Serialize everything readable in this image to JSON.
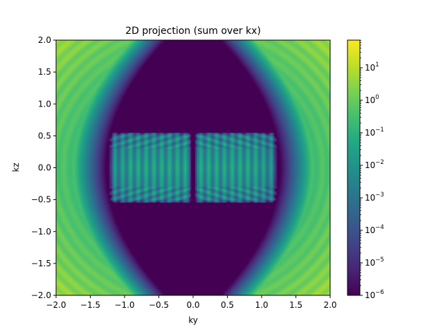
{
  "chart_data": {
    "type": "heatmap",
    "title": "2D projection (sum over kx)",
    "xlabel": "ky",
    "ylabel": "kz",
    "xlim": [
      -2.0,
      2.0
    ],
    "ylim": [
      -2.0,
      2.0
    ],
    "x_ticks": [
      "−2.0",
      "−1.5",
      "−1.0",
      "−0.5",
      "0.0",
      "0.5",
      "1.0",
      "1.5",
      "2.0"
    ],
    "x_tick_values": [
      -2.0,
      -1.5,
      -1.0,
      -0.5,
      0.0,
      0.5,
      1.0,
      1.5,
      2.0
    ],
    "y_ticks": [
      "2.0",
      "1.5",
      "1.0",
      "0.5",
      "0.0",
      "−0.5",
      "−1.0",
      "−1.5",
      "−2.0"
    ],
    "y_tick_values": [
      2.0,
      1.5,
      1.0,
      0.5,
      0.0,
      -0.5,
      -1.0,
      -1.5,
      -2.0
    ],
    "colorscale": "viridis",
    "color_scale_type": "log",
    "colorbar": {
      "min_exp": -6,
      "max_exp": 1.85,
      "ticks": [
        {
          "base": "10",
          "exp": "1",
          "value": 1
        },
        {
          "base": "10",
          "exp": "0",
          "value": 0
        },
        {
          "base": "10",
          "exp": "−1",
          "value": -1
        },
        {
          "base": "10",
          "exp": "−2",
          "value": -2
        },
        {
          "base": "10",
          "exp": "−3",
          "value": -3
        },
        {
          "base": "10",
          "exp": "−4",
          "value": -4
        },
        {
          "base": "10",
          "exp": "−5",
          "value": -5
        },
        {
          "base": "10",
          "exp": "−6",
          "value": -6
        }
      ]
    },
    "grid": false,
    "description_values": {
      "central_region_log10": -6,
      "outer_region_log10_max": 1.8,
      "inner_structure_log10": -2,
      "boundary_kz0_abs_ky": 1.27,
      "boundary_kz2_abs_ky": 0.4
    }
  }
}
